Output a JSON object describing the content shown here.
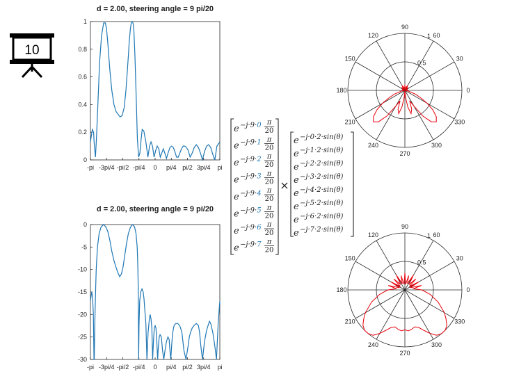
{
  "slide_number": "10",
  "colors": {
    "line": "#1f77b4",
    "polar": "#e8000b",
    "index_red": "#e8000b",
    "index_blue": "#1f77b4",
    "axis": "#262626"
  },
  "icons": [
    "presentation-board-icon"
  ],
  "multiply_symbol": "×",
  "steering": {
    "base": "e",
    "exponent_prefix": "−j·9·",
    "frac_num": "π",
    "frac_den": "20",
    "indices": [
      "0",
      "1",
      "2",
      "3",
      "4",
      "5",
      "6",
      "7"
    ]
  },
  "phase": {
    "base": "e",
    "exponent_prefix": "−j·",
    "exponent_suffix": "·2·sin(θ)",
    "indices": [
      "0",
      "1",
      "2",
      "3",
      "4",
      "5",
      "6",
      "7"
    ]
  },
  "chart_data": [
    {
      "type": "line",
      "title": "d = 2.00, steering angle  = 9 pi/20",
      "xlabel": "",
      "ylabel": "",
      "xlim": [
        -3.1416,
        3.1416
      ],
      "ylim": [
        0,
        1
      ],
      "xticks": [
        "-pi",
        "-3pi/4",
        "-pi/2",
        "-pi/4",
        "0",
        "pi/4",
        "pi/2",
        "3pi/4",
        "pi"
      ],
      "yticks": [
        "0",
        "0.2",
        "0.4",
        "0.6",
        "0.8",
        "1"
      ],
      "series": [
        {
          "x": [
            -3.1416,
            -3.05,
            -2.99,
            -2.96,
            -2.9,
            -2.85,
            -2.78,
            -2.7,
            -2.6,
            -2.5,
            -2.42,
            -2.36,
            -2.3,
            -2.2,
            -2.1,
            -2.0,
            -1.9,
            -1.8,
            -1.7,
            -1.6,
            -1.5,
            -1.42,
            -1.36,
            -1.3,
            -1.26,
            -1.2,
            -1.15,
            -1.1,
            -1.06,
            -1.03,
            -0.98,
            -0.92,
            -0.86,
            -0.8,
            -0.74,
            -0.68,
            -0.63,
            -0.55,
            -0.45,
            -0.35,
            -0.27,
            -0.2,
            -0.13,
            -0.05,
            0.03,
            0.1,
            0.18,
            0.25,
            0.32,
            0.4,
            0.47,
            0.55,
            0.63,
            0.72,
            0.8,
            0.88,
            0.96,
            1.04,
            1.12,
            1.2,
            1.28,
            1.36,
            1.44,
            1.52,
            1.6,
            1.7,
            1.8,
            1.9,
            2.0,
            2.1,
            2.2,
            2.3,
            2.4,
            2.5,
            2.6,
            2.7,
            2.8,
            2.9,
            3.0,
            3.1416
          ],
          "y": [
            0.13,
            0.22,
            0.2,
            0.12,
            0.02,
            0.15,
            0.4,
            0.7,
            0.9,
            0.99,
            0.99,
            0.95,
            0.85,
            0.65,
            0.5,
            0.4,
            0.35,
            0.33,
            0.31,
            0.32,
            0.38,
            0.5,
            0.62,
            0.75,
            0.85,
            0.95,
            1.0,
            1.0,
            0.98,
            0.93,
            0.75,
            0.45,
            0.15,
            0.02,
            0.05,
            0.15,
            0.22,
            0.21,
            0.13,
            0.02,
            0.1,
            0.13,
            0.1,
            0.02,
            0.07,
            0.1,
            0.08,
            0.02,
            0.05,
            0.08,
            0.05,
            0.01,
            0.05,
            0.09,
            0.1,
            0.09,
            0.06,
            0.02,
            0.02,
            0.05,
            0.08,
            0.1,
            0.1,
            0.09,
            0.07,
            0.02,
            0.05,
            0.09,
            0.11,
            0.09,
            0.05,
            0.0,
            0.06,
            0.1,
            0.11,
            0.09,
            0.04,
            0.0,
            0.1,
            0.13
          ]
        }
      ]
    },
    {
      "type": "line",
      "title": "d = 2.00, steering angle  = 9 pi/20",
      "xlabel": "",
      "ylabel": "",
      "xlim": [
        -3.1416,
        3.1416
      ],
      "ylim": [
        -30,
        0
      ],
      "xticks": [
        "-pi",
        "-3pi/4",
        "-pi/2",
        "-pi/4",
        "0",
        "pi/4",
        "pi/2",
        "3pi/4",
        "pi"
      ],
      "yticks": [
        "-30",
        "-25",
        "-20",
        "-15",
        "-10",
        "-5",
        "0"
      ],
      "series": [
        {
          "x": [
            -3.1416,
            -3.08,
            -3.04,
            -3.0,
            -2.97,
            -2.955,
            -2.93,
            -2.9,
            -2.86,
            -2.8,
            -2.72,
            -2.62,
            -2.5,
            -2.4,
            -2.3,
            -2.2,
            -2.1,
            -2.0,
            -1.9,
            -1.8,
            -1.72,
            -1.64,
            -1.56,
            -1.48,
            -1.4,
            -1.3,
            -1.2,
            -1.1,
            -1.0,
            -0.93,
            -0.87,
            -0.84,
            -0.82,
            -0.8,
            -0.78,
            -0.75,
            -0.7,
            -0.64,
            -0.58,
            -0.54,
            -0.5,
            -0.45,
            -0.4,
            -0.34,
            -0.28,
            -0.24,
            -0.2,
            -0.16,
            -0.12,
            -0.08,
            -0.04,
            0.0,
            0.04,
            0.08,
            0.12,
            0.16,
            0.2,
            0.24,
            0.3,
            0.36,
            0.42,
            0.48,
            0.55,
            0.62,
            0.68,
            0.72,
            0.76,
            0.8,
            0.84,
            0.88,
            0.92,
            0.96,
            1.0,
            1.1,
            1.2,
            1.3,
            1.4,
            1.5,
            1.6,
            1.66,
            1.72,
            1.8,
            1.9,
            2.0,
            2.1,
            2.16,
            2.22,
            2.3,
            2.4,
            2.5,
            2.6,
            2.64,
            2.7,
            2.8,
            2.9,
            2.98,
            3.06,
            3.1416
          ],
          "y": [
            -17,
            -15,
            -16,
            -20,
            -30,
            -30,
            -22,
            -16,
            -10,
            -5,
            -2,
            -0.5,
            0,
            -0.5,
            -1.5,
            -3.5,
            -6,
            -8,
            -9.5,
            -10.8,
            -11.6,
            -11,
            -9.5,
            -7,
            -4.5,
            -2,
            -0.6,
            0,
            -0.5,
            -2,
            -5,
            -9,
            -14,
            -30,
            -22,
            -17,
            -15,
            -14.3,
            -15,
            -16.5,
            -19,
            -22,
            -30,
            -24,
            -21,
            -20,
            -21,
            -23,
            -30,
            -26,
            -23,
            -22.5,
            -23,
            -26,
            -30,
            -27,
            -25,
            -24.5,
            -25,
            -28,
            -30,
            -28,
            -26,
            -25,
            -25.5,
            -28,
            -30,
            -27,
            -24.5,
            -23.3,
            -22.5,
            -22.2,
            -22,
            -22,
            -22.5,
            -24,
            -28,
            -30,
            -27,
            -25,
            -24,
            -23,
            -22.4,
            -22,
            -22.4,
            -24,
            -27,
            -30,
            -26,
            -23.5,
            -22,
            -21.5,
            -22,
            -24,
            -27,
            -30,
            -22,
            -17
          ]
        }
      ]
    },
    {
      "type": "polar",
      "angle_ticks": [
        "0",
        "30",
        "60",
        "90",
        "120",
        "150",
        "180",
        "210",
        "240",
        "270",
        "300",
        "330"
      ],
      "radial_ticks": [
        "0.5",
        "1"
      ],
      "rlim": [
        0,
        1
      ],
      "series": [
        {
          "theta_deg": [
            0,
            10,
            20,
            30,
            40,
            50,
            60,
            70,
            80,
            90,
            100,
            110,
            120,
            130,
            140,
            150,
            160,
            170,
            180,
            190,
            200,
            205,
            210,
            215,
            220,
            225,
            230,
            235,
            240,
            245,
            250,
            255,
            260,
            265,
            270,
            275,
            280,
            285,
            290,
            295,
            300,
            305,
            310,
            315,
            320,
            325,
            330,
            335,
            340,
            350,
            360
          ],
          "r": [
            0.0,
            0.03,
            0.05,
            0.02,
            0.08,
            0.04,
            0.1,
            0.06,
            0.03,
            0.1,
            0.03,
            0.06,
            0.1,
            0.04,
            0.08,
            0.02,
            0.05,
            0.03,
            0.0,
            0.06,
            0.2,
            0.3,
            0.45,
            0.6,
            0.72,
            0.78,
            0.72,
            0.55,
            0.32,
            0.2,
            0.35,
            0.42,
            0.3,
            0.12,
            0.0,
            0.12,
            0.3,
            0.42,
            0.35,
            0.2,
            0.32,
            0.55,
            0.72,
            0.78,
            0.72,
            0.6,
            0.45,
            0.3,
            0.2,
            0.06,
            0.0
          ]
        }
      ]
    },
    {
      "type": "polar",
      "angle_ticks": [
        "0",
        "30",
        "60",
        "90",
        "120",
        "150",
        "180",
        "210",
        "240",
        "270",
        "300",
        "330"
      ],
      "radial_ticks": [
        "0.5",
        "1"
      ],
      "rlim": [
        0,
        1
      ],
      "series": [
        {
          "theta_deg": [
            0,
            8,
            15,
            22,
            30,
            38,
            45,
            52,
            60,
            68,
            75,
            82,
            90,
            98,
            105,
            112,
            120,
            128,
            135,
            142,
            150,
            158,
            165,
            172,
            180,
            190,
            200,
            210,
            215,
            220,
            225,
            230,
            235,
            240,
            245,
            250,
            255,
            260,
            265,
            270,
            275,
            280,
            285,
            290,
            295,
            300,
            305,
            310,
            315,
            320,
            325,
            330,
            340,
            350,
            360
          ],
          "r": [
            0.3,
            0.15,
            0.3,
            0.1,
            0.28,
            0.1,
            0.27,
            0.12,
            0.3,
            0.12,
            0.26,
            0.1,
            0.3,
            0.1,
            0.26,
            0.12,
            0.3,
            0.12,
            0.27,
            0.1,
            0.28,
            0.1,
            0.3,
            0.15,
            0.3,
            0.45,
            0.62,
            0.8,
            0.88,
            0.96,
            1.0,
            1.0,
            0.97,
            0.88,
            0.78,
            0.7,
            0.67,
            0.7,
            0.72,
            0.7,
            0.72,
            0.7,
            0.67,
            0.7,
            0.78,
            0.88,
            0.97,
            1.0,
            1.0,
            0.96,
            0.88,
            0.8,
            0.62,
            0.45,
            0.3
          ]
        }
      ]
    }
  ]
}
